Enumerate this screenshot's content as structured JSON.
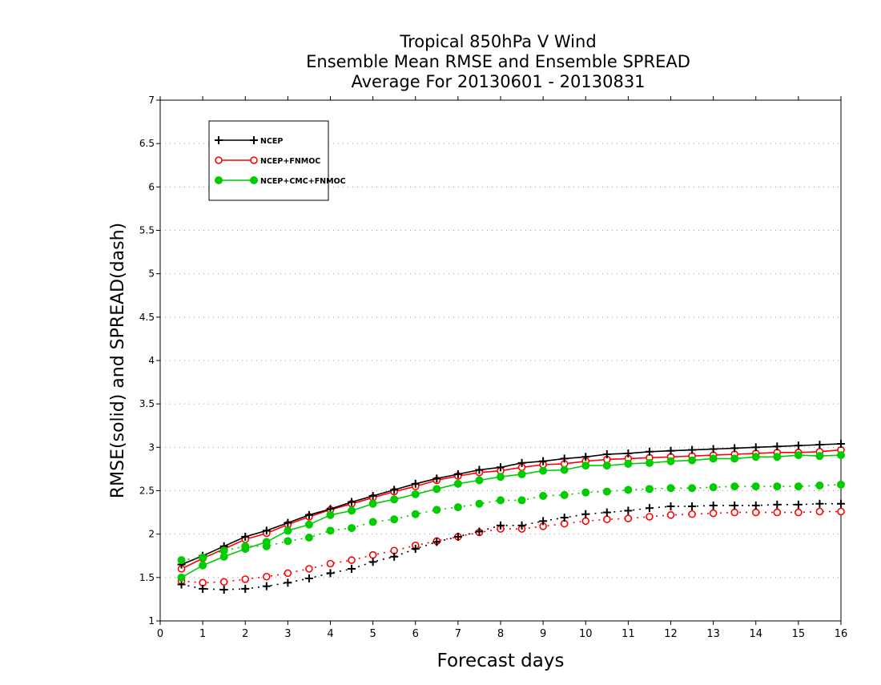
{
  "chart_data": {
    "type": "line",
    "title_lines": [
      "Tropical 850hPa V Wind",
      "Ensemble Mean RMSE and Ensemble SPREAD",
      "Average For 20130601 - 20130831"
    ],
    "xlabel": "Forecast days",
    "ylabel": "RMSE(solid) and SPREAD(dash)",
    "xlim": [
      0,
      16
    ],
    "ylim": [
      1,
      7
    ],
    "xticks": [
      "0",
      "1",
      "2",
      "3",
      "4",
      "5",
      "6",
      "7",
      "8",
      "9",
      "10",
      "11",
      "12",
      "13",
      "14",
      "15",
      "16"
    ],
    "yticks": [
      "1",
      "1.5",
      "2",
      "2.5",
      "3",
      "3.5",
      "4",
      "4.5",
      "5",
      "5.5",
      "6",
      "6.5",
      "7"
    ],
    "grid": "horizontal dotted",
    "legend_position": "top-left",
    "x": [
      0.5,
      1,
      1.5,
      2,
      2.5,
      3,
      3.5,
      4,
      4.5,
      5,
      5.5,
      6,
      6.5,
      7,
      7.5,
      8,
      8.5,
      9,
      9.5,
      10,
      10.5,
      11,
      11.5,
      12,
      12.5,
      13,
      13.5,
      14,
      14.5,
      15,
      15.5,
      16
    ],
    "series": [
      {
        "name": "NCEP",
        "marker": "plus",
        "color": "#000000",
        "rmse": [
          1.65,
          1.75,
          1.86,
          1.97,
          2.04,
          2.13,
          2.22,
          2.29,
          2.37,
          2.44,
          2.51,
          2.58,
          2.64,
          2.69,
          2.74,
          2.77,
          2.82,
          2.84,
          2.87,
          2.89,
          2.92,
          2.93,
          2.95,
          2.96,
          2.97,
          2.98,
          2.99,
          3.0,
          3.01,
          3.02,
          3.03,
          3.04
        ],
        "spread": [
          1.42,
          1.37,
          1.36,
          1.37,
          1.4,
          1.44,
          1.49,
          1.55,
          1.6,
          1.68,
          1.74,
          1.83,
          1.91,
          1.97,
          2.03,
          2.1,
          2.1,
          2.15,
          2.19,
          2.23,
          2.25,
          2.27,
          2.3,
          2.32,
          2.32,
          2.33,
          2.33,
          2.33,
          2.34,
          2.34,
          2.35,
          2.35
        ]
      },
      {
        "name": "NCEP+FNMOC",
        "marker": "open-circle",
        "color": "#ff0000",
        "rmse": [
          1.6,
          1.72,
          1.83,
          1.94,
          2.01,
          2.11,
          2.2,
          2.28,
          2.35,
          2.42,
          2.49,
          2.55,
          2.62,
          2.67,
          2.71,
          2.73,
          2.77,
          2.8,
          2.81,
          2.84,
          2.86,
          2.87,
          2.88,
          2.89,
          2.9,
          2.91,
          2.92,
          2.93,
          2.94,
          2.94,
          2.95,
          2.97
        ],
        "spread": [
          1.46,
          1.44,
          1.45,
          1.48,
          1.51,
          1.55,
          1.6,
          1.66,
          1.7,
          1.76,
          1.81,
          1.87,
          1.92,
          1.97,
          2.02,
          2.06,
          2.06,
          2.09,
          2.12,
          2.15,
          2.17,
          2.18,
          2.2,
          2.22,
          2.23,
          2.24,
          2.25,
          2.25,
          2.25,
          2.25,
          2.26,
          2.26
        ]
      },
      {
        "name": "NCEP+CMC+FNMOC",
        "marker": "filled-circle",
        "color": "#00cc00",
        "rmse": [
          1.5,
          1.64,
          1.74,
          1.83,
          1.91,
          2.04,
          2.11,
          2.22,
          2.27,
          2.35,
          2.4,
          2.46,
          2.52,
          2.58,
          2.62,
          2.66,
          2.69,
          2.73,
          2.74,
          2.79,
          2.79,
          2.81,
          2.82,
          2.84,
          2.85,
          2.87,
          2.87,
          2.89,
          2.89,
          2.91,
          2.9,
          2.91
        ],
        "spread": [
          1.7,
          1.73,
          1.81,
          1.86,
          1.86,
          1.92,
          1.96,
          2.04,
          2.07,
          2.14,
          2.17,
          2.23,
          2.28,
          2.31,
          2.35,
          2.39,
          2.39,
          2.44,
          2.45,
          2.48,
          2.49,
          2.51,
          2.52,
          2.53,
          2.53,
          2.54,
          2.55,
          2.55,
          2.55,
          2.55,
          2.56,
          2.57
        ]
      }
    ]
  }
}
